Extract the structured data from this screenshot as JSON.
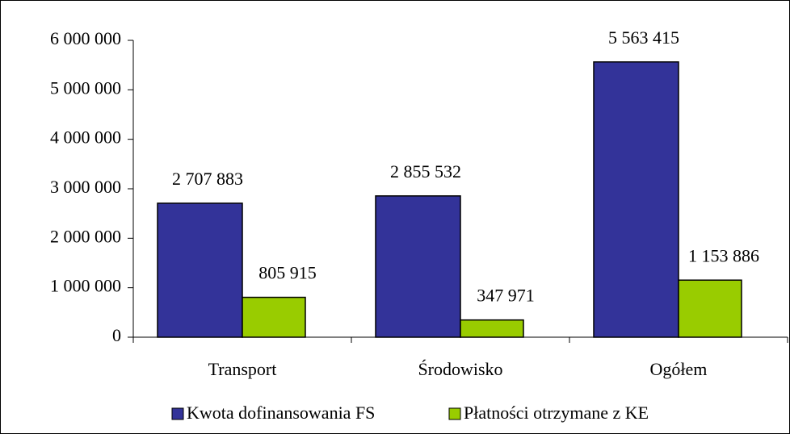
{
  "chart_data": {
    "type": "bar",
    "categories": [
      "Transport",
      "Środowisko",
      "Ogółem"
    ],
    "series": [
      {
        "name": "Kwota dofinansowania FS",
        "color": "#333399",
        "values": [
          2707883,
          2855532,
          5563415
        ],
        "value_labels": [
          "2 707 883",
          "2 855 532",
          "5 563 415"
        ]
      },
      {
        "name": "Płatności otrzymane z KE",
        "color": "#99cc00",
        "values": [
          805915,
          347971,
          1153886
        ],
        "value_labels": [
          "805 915",
          "347 971",
          "1 153 886"
        ]
      }
    ],
    "ylim": [
      0,
      6000000
    ],
    "yticks": [
      0,
      {
        "value": 1000000,
        "label": "1 000 000"
      },
      {
        "value": 2000000,
        "label": "2 000 000"
      },
      {
        "value": 3000000,
        "label": "3 000 000"
      },
      {
        "value": 4000000,
        "label": "4 000 000"
      },
      {
        "value": 5000000,
        "label": "5 000 000"
      },
      {
        "value": 6000000,
        "label": "6 000 000"
      }
    ],
    "legend": "bottom"
  }
}
